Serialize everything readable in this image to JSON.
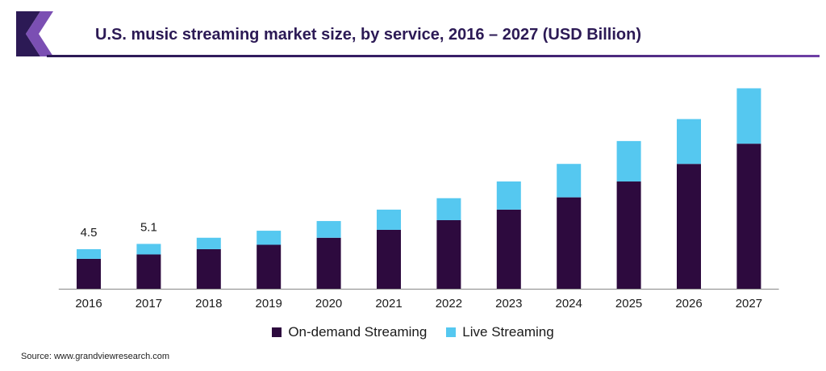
{
  "header": {
    "title": "U.S. music streaming market size, by service, 2016 – 2027 (USD Billion)"
  },
  "source": "Source: www.grandviewresearch.com",
  "colors": {
    "on_demand": "#2d0a3e",
    "live": "#55c8f0",
    "brand": "#2c1a55"
  },
  "chart_data": {
    "type": "bar",
    "stacked": true,
    "categories": [
      "2016",
      "2017",
      "2018",
      "2019",
      "2020",
      "2021",
      "2022",
      "2023",
      "2024",
      "2025",
      "2026",
      "2027"
    ],
    "series": [
      {
        "name": "On-demand Streaming",
        "values": [
          3.4,
          3.9,
          4.5,
          5.0,
          5.8,
          6.7,
          7.8,
          9.0,
          10.4,
          12.2,
          14.2,
          16.5
        ]
      },
      {
        "name": "Live Streaming",
        "values": [
          1.1,
          1.2,
          1.3,
          1.6,
          1.9,
          2.3,
          2.5,
          3.2,
          3.8,
          4.6,
          5.1,
          6.3
        ]
      }
    ],
    "data_labels": [
      {
        "category": "2016",
        "text": "4.5"
      },
      {
        "category": "2017",
        "text": "5.1"
      }
    ],
    "ylim": [
      0,
      23
    ],
    "grid": false,
    "legend_position": "bottom"
  }
}
